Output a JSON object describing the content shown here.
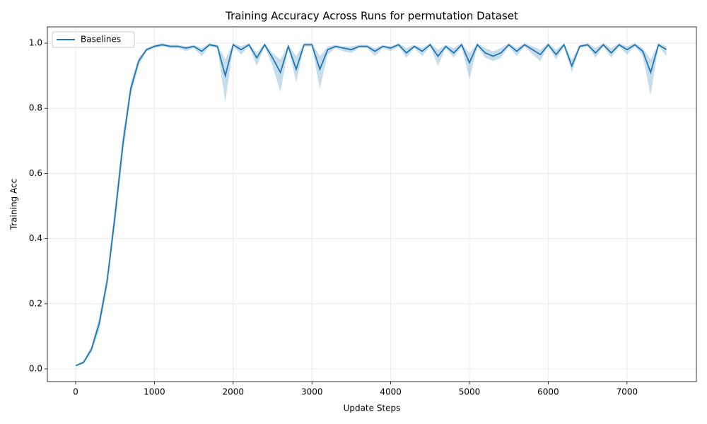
{
  "chart_data": {
    "type": "line",
    "title": "Training Accuracy Across Runs for permutation Dataset",
    "xlabel": "Update Steps",
    "ylabel": "Training Acc",
    "x": [
      0,
      100,
      200,
      300,
      400,
      500,
      600,
      700,
      800,
      900,
      1000,
      1100,
      1200,
      1300,
      1400,
      1500,
      1600,
      1700,
      1800,
      1900,
      2000,
      2100,
      2200,
      2300,
      2400,
      2500,
      2600,
      2700,
      2800,
      2900,
      3000,
      3100,
      3200,
      3300,
      3400,
      3500,
      3600,
      3700,
      3800,
      3900,
      4000,
      4100,
      4200,
      4300,
      4400,
      4500,
      4600,
      4700,
      4800,
      4900,
      5000,
      5100,
      5200,
      5300,
      5400,
      5500,
      5600,
      5700,
      5800,
      5900,
      6000,
      6100,
      6200,
      6300,
      6400,
      6500,
      6600,
      6700,
      6800,
      6900,
      7000,
      7100,
      7200,
      7300,
      7400,
      7500
    ],
    "series": [
      {
        "name": "Baselines",
        "color": "#1f77b4",
        "values": [
          0.01,
          0.02,
          0.06,
          0.14,
          0.27,
          0.47,
          0.69,
          0.86,
          0.945,
          0.98,
          0.99,
          0.995,
          0.99,
          0.99,
          0.985,
          0.99,
          0.975,
          0.995,
          0.99,
          0.9,
          0.995,
          0.98,
          0.995,
          0.955,
          0.995,
          0.955,
          0.91,
          0.99,
          0.92,
          0.995,
          0.995,
          0.92,
          0.98,
          0.99,
          0.985,
          0.98,
          0.99,
          0.99,
          0.975,
          0.99,
          0.985,
          0.995,
          0.97,
          0.99,
          0.975,
          0.995,
          0.96,
          0.99,
          0.97,
          0.995,
          0.94,
          0.995,
          0.97,
          0.96,
          0.97,
          0.995,
          0.975,
          0.995,
          0.98,
          0.965,
          0.995,
          0.965,
          0.995,
          0.93,
          0.99,
          0.995,
          0.97,
          0.995,
          0.97,
          0.995,
          0.98,
          0.995,
          0.975,
          0.91,
          0.995,
          0.98
        ],
        "lower": [
          0.008,
          0.015,
          0.05,
          0.12,
          0.25,
          0.44,
          0.66,
          0.84,
          0.93,
          0.975,
          0.985,
          0.99,
          0.985,
          0.985,
          0.975,
          0.985,
          0.96,
          0.99,
          0.985,
          0.82,
          0.99,
          0.965,
          0.99,
          0.93,
          0.99,
          0.93,
          0.85,
          0.985,
          0.88,
          0.99,
          0.99,
          0.86,
          0.965,
          0.985,
          0.975,
          0.97,
          0.985,
          0.985,
          0.96,
          0.985,
          0.975,
          0.99,
          0.955,
          0.985,
          0.96,
          0.99,
          0.93,
          0.985,
          0.955,
          0.99,
          0.89,
          0.99,
          0.955,
          0.945,
          0.955,
          0.99,
          0.96,
          0.99,
          0.965,
          0.945,
          0.99,
          0.95,
          0.99,
          0.91,
          0.985,
          0.99,
          0.955,
          0.99,
          0.955,
          0.99,
          0.965,
          0.99,
          0.96,
          0.84,
          0.99,
          0.96
        ],
        "upper": [
          0.012,
          0.025,
          0.07,
          0.16,
          0.29,
          0.5,
          0.72,
          0.88,
          0.955,
          0.985,
          0.995,
          1.0,
          0.995,
          0.995,
          0.99,
          0.995,
          0.985,
          1.0,
          0.995,
          0.95,
          1.0,
          0.99,
          1.0,
          0.97,
          1.0,
          0.97,
          0.95,
          0.995,
          0.96,
          1.0,
          1.0,
          0.96,
          0.99,
          0.995,
          0.99,
          0.99,
          0.995,
          0.995,
          0.985,
          0.995,
          0.99,
          1.0,
          0.985,
          0.995,
          0.985,
          1.0,
          0.98,
          0.995,
          0.985,
          1.0,
          0.97,
          1.0,
          0.985,
          0.975,
          0.985,
          1.0,
          0.985,
          1.0,
          0.99,
          0.98,
          1.0,
          0.98,
          1.0,
          0.95,
          0.995,
          1.0,
          0.985,
          1.0,
          0.985,
          1.0,
          0.99,
          1.0,
          0.985,
          0.95,
          1.0,
          0.99
        ]
      }
    ],
    "xlim": [
      -359,
      7881
    ],
    "ylim": [
      -0.039,
      1.05
    ],
    "xticks": [
      0,
      1000,
      2000,
      3000,
      4000,
      5000,
      6000,
      7000
    ],
    "yticks": [
      {
        "value": 0,
        "label": "0.0"
      },
      {
        "value": 0.2,
        "label": "0.2"
      },
      {
        "value": 0.4,
        "label": "0.4"
      },
      {
        "value": 0.6,
        "label": "0.6"
      },
      {
        "value": 0.8,
        "label": "0.8"
      },
      {
        "value": 1,
        "label": "1.0"
      }
    ],
    "grid": true,
    "legend": "upper left"
  }
}
